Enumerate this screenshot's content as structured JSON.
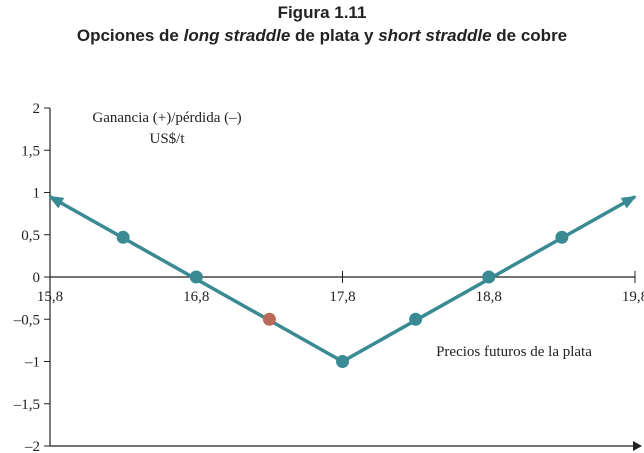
{
  "figure": {
    "number": "Figura 1.11",
    "title_parts": [
      {
        "text": "Opciones de ",
        "italic": false
      },
      {
        "text": "long straddle",
        "italic": true
      },
      {
        "text": " de plata y ",
        "italic": false
      },
      {
        "text": "short straddle",
        "italic": true
      },
      {
        "text": " de cobre",
        "italic": false
      }
    ]
  },
  "chart_data": {
    "type": "line",
    "title": "Opciones de long straddle de plata y short straddle de cobre",
    "ylabel": "Ganancia (+)/pérdida (–)",
    "yunit": "US$/t",
    "xlabel": "Precios futuros de la plata",
    "xlim": [
      15.8,
      19.8
    ],
    "ylim": [
      -2,
      2
    ],
    "x_ticks": [
      15.8,
      16.8,
      17.8,
      18.8,
      19.8
    ],
    "x_tick_labels": [
      "15,8",
      "16,8",
      "17,8",
      "18,8",
      "19,8"
    ],
    "y_ticks": [
      2,
      1.5,
      1,
      0.5,
      0,
      -0.5,
      -1,
      -1.5,
      -2
    ],
    "y_tick_labels": [
      "2",
      "1,5",
      "1",
      "0,5",
      "0",
      "–0,5",
      "–1",
      "–1,5",
      "–2"
    ],
    "series": [
      {
        "color": "#3a8a94",
        "line_points": [
          {
            "x": 15.8,
            "y": 0.95
          },
          {
            "x": 17.8,
            "y": -1.0
          },
          {
            "x": 19.8,
            "y": 0.95
          }
        ],
        "markers": [
          {
            "x": 16.3,
            "y": 0.47
          },
          {
            "x": 16.8,
            "y": 0.0
          },
          {
            "x": 17.3,
            "y": -0.5
          },
          {
            "x": 17.8,
            "y": -1.0
          },
          {
            "x": 18.3,
            "y": -0.5
          },
          {
            "x": 18.8,
            "y": 0.0
          },
          {
            "x": 19.3,
            "y": 0.47
          }
        ]
      }
    ],
    "colors": {
      "line": "#3a8a94",
      "marker": "#3a8a94",
      "highlight_marker": "#b86a5a",
      "axis": "#222222"
    },
    "highlight_marker_index": 2,
    "grid": false,
    "legend": "none"
  }
}
